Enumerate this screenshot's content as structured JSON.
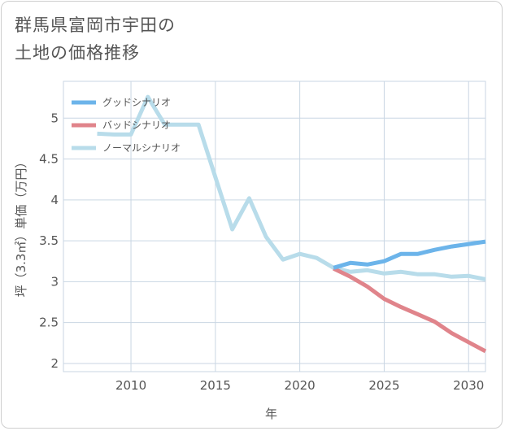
{
  "title": {
    "line1": "群馬県富岡市宇田の",
    "line2": "土地の価格推移"
  },
  "chart_data": {
    "type": "line",
    "xlabel": "年",
    "ylabel": "坪（3.3㎡）単価（万円）",
    "xlim": [
      2006,
      2031
    ],
    "ylim": [
      1.9,
      5.45
    ],
    "x_ticks": [
      2010,
      2015,
      2020,
      2025,
      2030
    ],
    "y_ticks": [
      2,
      2.5,
      3,
      3.5,
      4,
      4.5,
      5
    ],
    "grid": true,
    "legend_position": "top-left",
    "series": [
      {
        "name": "グッドシナリオ",
        "color": "#6cb4ea",
        "x": [
          2022,
          2023,
          2024,
          2025,
          2026,
          2027,
          2028,
          2029,
          2030,
          2031
        ],
        "y": [
          3.17,
          3.23,
          3.21,
          3.25,
          3.34,
          3.34,
          3.39,
          3.43,
          3.46,
          3.49
        ]
      },
      {
        "name": "バッドシナリオ",
        "color": "#e0848b",
        "x": [
          2022,
          2023,
          2024,
          2025,
          2026,
          2027,
          2028,
          2029,
          2030,
          2031
        ],
        "y": [
          3.16,
          3.06,
          2.94,
          2.79,
          2.69,
          2.6,
          2.51,
          2.37,
          2.26,
          2.15
        ]
      },
      {
        "name": "ノーマルシナリオ",
        "color": "#b8dcea",
        "x": [
          2008,
          2009,
          2010,
          2011,
          2012,
          2013,
          2014,
          2015,
          2016,
          2017,
          2018,
          2019,
          2020,
          2021,
          2022,
          2023,
          2024,
          2025,
          2026,
          2027,
          2028,
          2029,
          2030,
          2031
        ],
        "y": [
          4.81,
          4.8,
          4.8,
          5.26,
          4.92,
          4.92,
          4.92,
          4.28,
          3.64,
          4.02,
          3.55,
          3.27,
          3.34,
          3.29,
          3.17,
          3.12,
          3.14,
          3.1,
          3.12,
          3.09,
          3.09,
          3.06,
          3.07,
          3.03
        ]
      }
    ]
  }
}
